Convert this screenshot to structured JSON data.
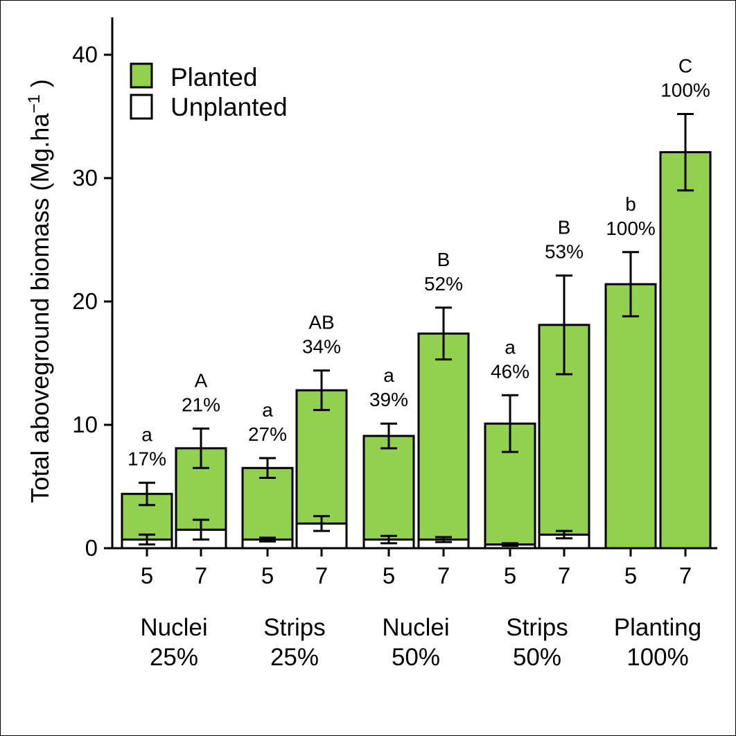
{
  "chart_data": {
    "type": "bar",
    "stacked": true,
    "ylabel": "Total aboveground biomass (Mg.ha",
    "ylabel_superscript": "−1",
    "ylabel_close": " )",
    "ylim": [
      0,
      43
    ],
    "yticks": [
      0,
      10,
      20,
      30,
      40
    ],
    "legend": {
      "position": "top-left",
      "entries": [
        {
          "label": "Planted",
          "color": "#92d050"
        },
        {
          "label": "Unplanted",
          "color": "#ffffff"
        }
      ]
    },
    "groups": [
      {
        "line1": "Nuclei",
        "line2": "25%"
      },
      {
        "line1": "Strips",
        "line2": "25%"
      },
      {
        "line1": "Nuclei",
        "line2": "50%"
      },
      {
        "line1": "Strips",
        "line2": "50%"
      },
      {
        "line1": "Planting",
        "line2": "100%"
      }
    ],
    "bars": [
      {
        "group": 0,
        "x": "5",
        "unplanted": 0.7,
        "unplanted_err": 0.4,
        "total": 4.4,
        "total_err": 0.9,
        "letter": "a",
        "percent": "17%"
      },
      {
        "group": 0,
        "x": "7",
        "unplanted": 1.5,
        "unplanted_err": 0.8,
        "total": 8.1,
        "total_err": 1.6,
        "letter": "A",
        "percent": "21%"
      },
      {
        "group": 1,
        "x": "5",
        "unplanted": 0.7,
        "unplanted_err": 0.15,
        "total": 6.5,
        "total_err": 0.8,
        "letter": "a",
        "percent": "27%"
      },
      {
        "group": 1,
        "x": "7",
        "unplanted": 2.0,
        "unplanted_err": 0.6,
        "total": 12.8,
        "total_err": 1.6,
        "letter": "AB",
        "percent": "34%"
      },
      {
        "group": 2,
        "x": "5",
        "unplanted": 0.7,
        "unplanted_err": 0.3,
        "total": 9.1,
        "total_err": 1.0,
        "letter": "a",
        "percent": "39%"
      },
      {
        "group": 2,
        "x": "7",
        "unplanted": 0.7,
        "unplanted_err": 0.2,
        "total": 17.4,
        "total_err": 2.1,
        "letter": "B",
        "percent": "52%"
      },
      {
        "group": 3,
        "x": "5",
        "unplanted": 0.3,
        "unplanted_err": 0.1,
        "total": 10.1,
        "total_err": 2.3,
        "letter": "a",
        "percent": "46%"
      },
      {
        "group": 3,
        "x": "7",
        "unplanted": 1.1,
        "unplanted_err": 0.3,
        "total": 18.1,
        "total_err": 4.0,
        "letter": "B",
        "percent": "53%"
      },
      {
        "group": 4,
        "x": "5",
        "unplanted": 0,
        "unplanted_err": null,
        "total": 21.4,
        "total_err": 2.6,
        "letter": "b",
        "percent": "100%"
      },
      {
        "group": 4,
        "x": "7",
        "unplanted": 0,
        "unplanted_err": null,
        "total": 32.1,
        "total_err": 3.1,
        "letter": "C",
        "percent": "100%"
      }
    ]
  }
}
